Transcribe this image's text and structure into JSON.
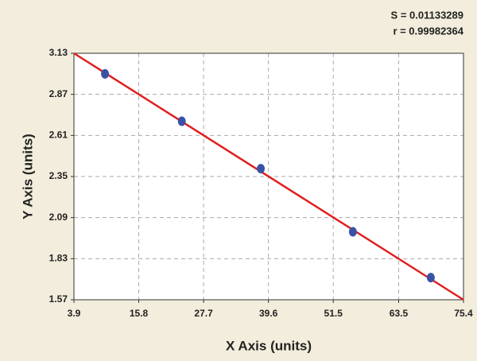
{
  "chart_data": {
    "type": "scatter",
    "annotations": [
      "S = 0.01133289",
      "r = 0.99982364"
    ],
    "x_label": "X Axis (units)",
    "y_label": "Y Axis (units)",
    "xlim": [
      3.9,
      75.4
    ],
    "xticks": [
      3.9,
      15.8,
      27.7,
      39.6,
      51.5,
      63.5,
      75.4
    ],
    "ylim": [
      1.57,
      3.13
    ],
    "yticks": [
      1.57,
      1.83,
      2.09,
      2.35,
      2.61,
      2.87,
      3.13
    ],
    "grid": true,
    "series": [
      {
        "color": "#3a52a6",
        "x": [
          9.6,
          23.7,
          38.2,
          55.1,
          69.4
        ],
        "values": [
          3.0,
          2.7,
          2.4,
          2.0,
          1.71
        ]
      }
    ],
    "fit": {
      "color": "#e02020",
      "x": [
        3.9,
        75.4
      ],
      "values": [
        3.13,
        1.57
      ]
    }
  }
}
